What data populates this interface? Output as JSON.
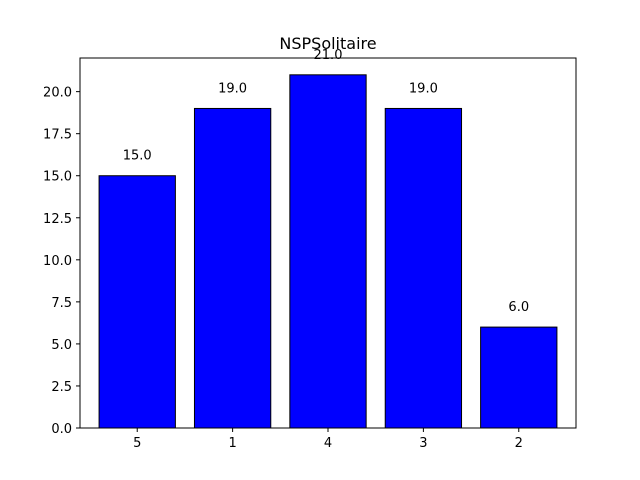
{
  "chart_data": {
    "type": "bar",
    "title": "NSPSolitaire",
    "xlabel": "",
    "ylabel": "",
    "categories": [
      "5",
      "1",
      "4",
      "3",
      "2"
    ],
    "values": [
      15.0,
      19.0,
      21.0,
      19.0,
      6.0
    ],
    "value_labels": [
      "15.0",
      "19.0",
      "21.0",
      "19.0",
      "6.0"
    ],
    "ylim": [
      0,
      22
    ],
    "yticks": [
      0.0,
      2.5,
      5.0,
      7.5,
      10.0,
      12.5,
      15.0,
      17.5,
      20.0
    ],
    "ytick_labels": [
      "0.0",
      "2.5",
      "5.0",
      "7.5",
      "10.0",
      "12.5",
      "15.0",
      "17.5",
      "20.0"
    ],
    "grid": false,
    "legend": false,
    "bar_color": "#0000ff",
    "edge_color": "#000000"
  }
}
